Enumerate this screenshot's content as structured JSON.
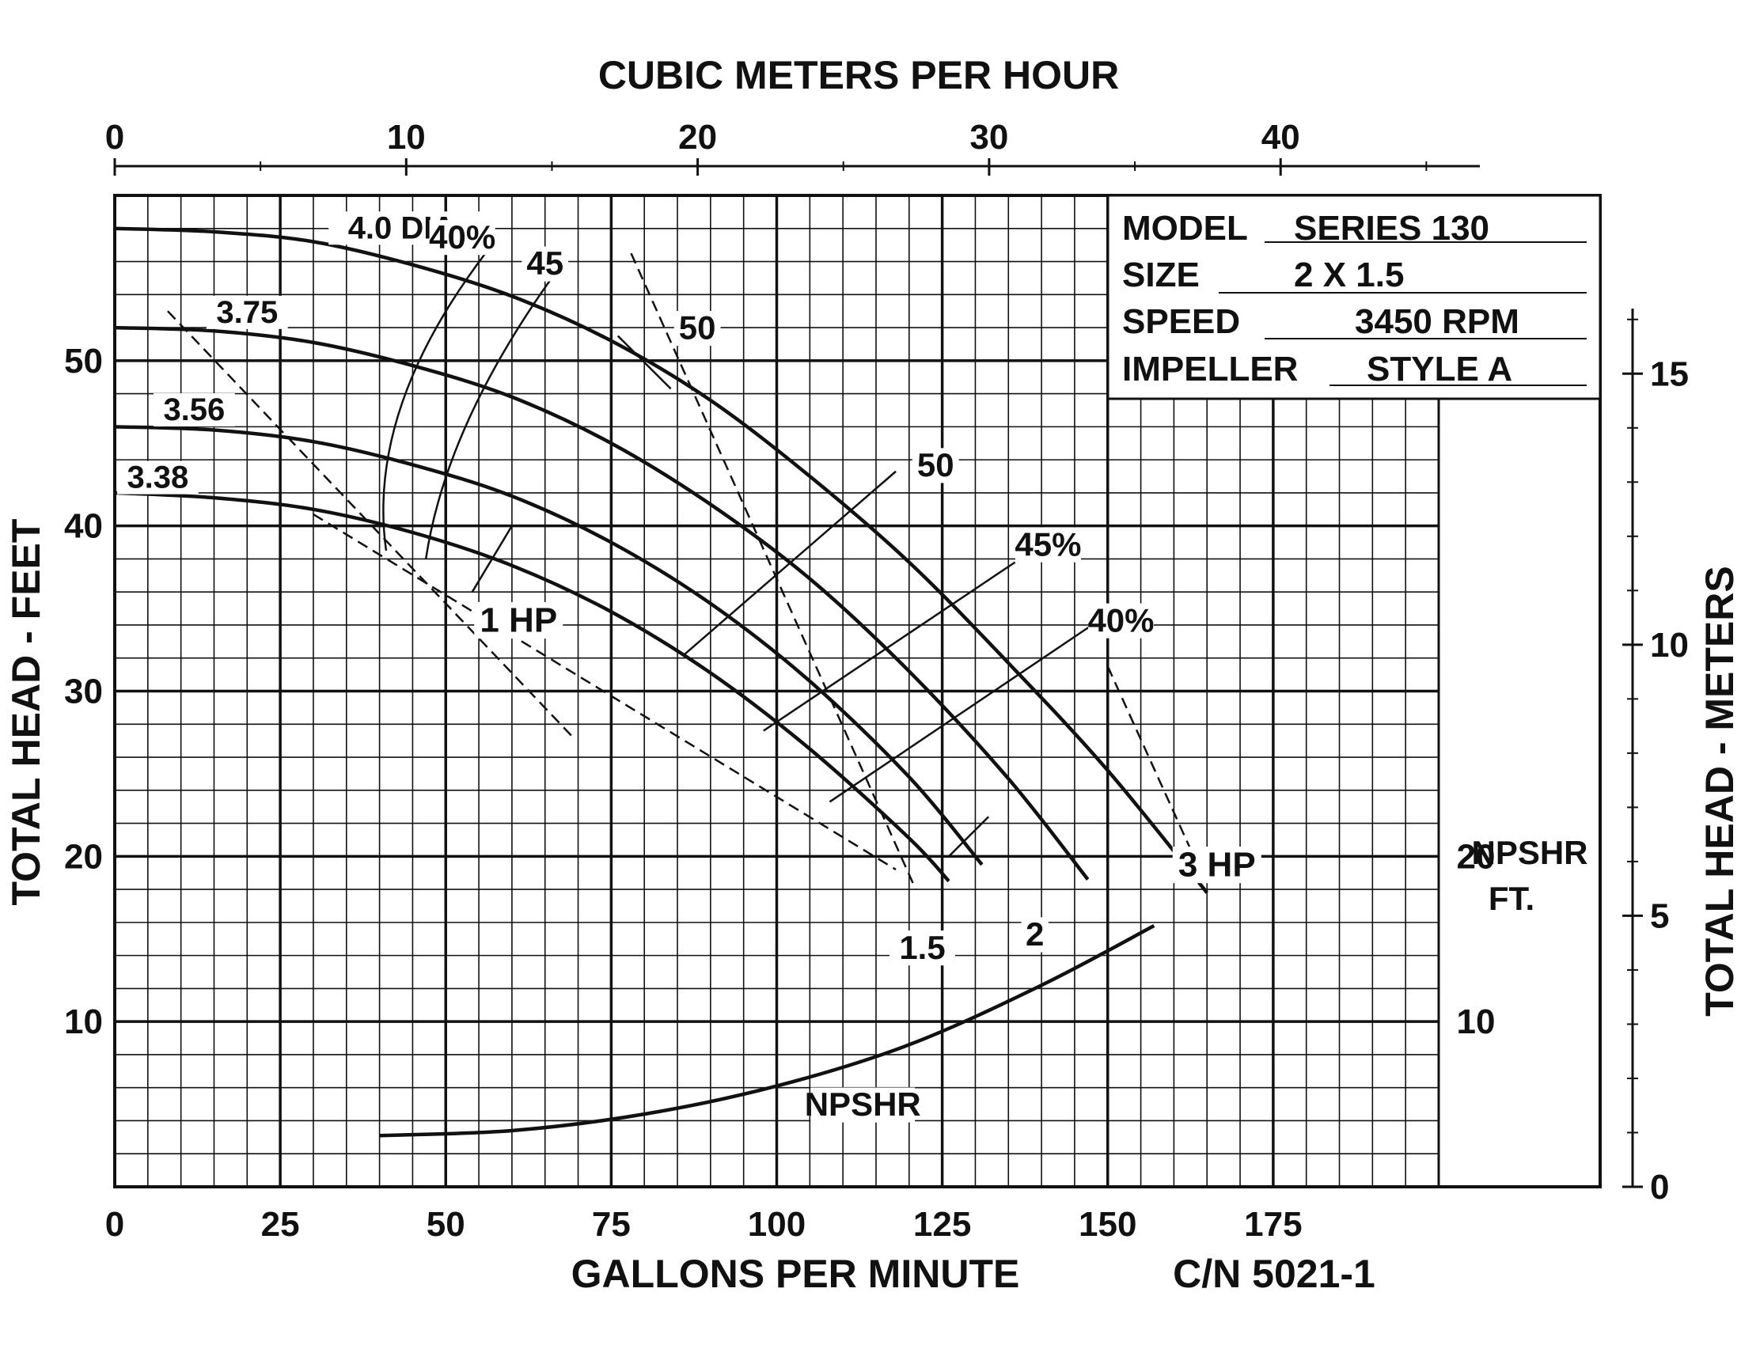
{
  "chart_data": {
    "type": "line",
    "title": "",
    "xlabel": "GALLONS PER MINUTE",
    "ylabel": "TOTAL HEAD - FEET",
    "top_axis_label": "CUBIC METERS PER HOUR",
    "right_axis_label": "TOTAL HEAD - METERS",
    "xlim": [
      0,
      225
    ],
    "ylim": [
      0,
      60
    ],
    "grid": true,
    "x_ticks": [
      0,
      25,
      50,
      75,
      100,
      125,
      150,
      175
    ],
    "y_ticks": [
      10,
      20,
      30,
      40,
      50
    ],
    "top_ticks": [
      0,
      10,
      20,
      30,
      40
    ],
    "right_ticks": [
      0,
      5,
      10,
      15
    ],
    "npsh_ticks": [
      10,
      20
    ],
    "npsh_axis_label": [
      "NPSHR",
      "FT."
    ],
    "catalog_number": "C/N 5021-1",
    "info": {
      "model_label": "MODEL",
      "model_value": "SERIES 130",
      "size_label": "SIZE",
      "size_value": "2 X 1.5",
      "speed_label": "SPEED",
      "speed_value": "3450 RPM",
      "impeller_label": "IMPELLER",
      "impeller_value": "STYLE A"
    },
    "series": [
      {
        "name": "4.0 DIA.",
        "x": [
          0,
          15,
          30,
          45,
          60,
          75,
          90,
          105,
          120,
          135,
          150,
          165
        ],
        "y": [
          58,
          57.8,
          57.2,
          55.8,
          53.9,
          51.2,
          47.6,
          43,
          37.8,
          31.7,
          25.2,
          17.8
        ]
      },
      {
        "name": "3.75",
        "x": [
          0,
          15,
          30,
          45,
          60,
          75,
          90,
          105,
          120,
          135,
          147
        ],
        "y": [
          52,
          51.8,
          51.1,
          49.7,
          47.8,
          45,
          41.3,
          36.8,
          31.2,
          24.7,
          18.6
        ]
      },
      {
        "name": "3.56",
        "x": [
          0,
          15,
          30,
          45,
          60,
          75,
          90,
          105,
          120,
          131
        ],
        "y": [
          46,
          45.8,
          45.1,
          43.7,
          41.8,
          39,
          35.3,
          30.6,
          24.8,
          19.5
        ]
      },
      {
        "name": "3.38",
        "x": [
          0,
          15,
          30,
          45,
          60,
          75,
          90,
          105,
          120,
          126
        ],
        "y": [
          42,
          41.7,
          41,
          39.6,
          37.6,
          34.8,
          31.1,
          26.5,
          21.1,
          18.5
        ]
      },
      {
        "name": "NPSHR",
        "x": [
          40,
          60,
          80,
          100,
          120,
          140,
          157
        ],
        "y": [
          3.1,
          3.4,
          4.4,
          6.1,
          8.6,
          12.2,
          15.8
        ]
      }
    ],
    "efficiency_labels": [
      "40%",
      "45",
      "50",
      "50",
      "45%",
      "40%"
    ],
    "power_labels": [
      "1 HP",
      "1.5",
      "2",
      "3 HP"
    ],
    "diameter_labels": [
      "4.0 DIA.",
      "3.75",
      "3.56",
      "3.38"
    ],
    "npsh_curve_label": "NPSHR"
  }
}
